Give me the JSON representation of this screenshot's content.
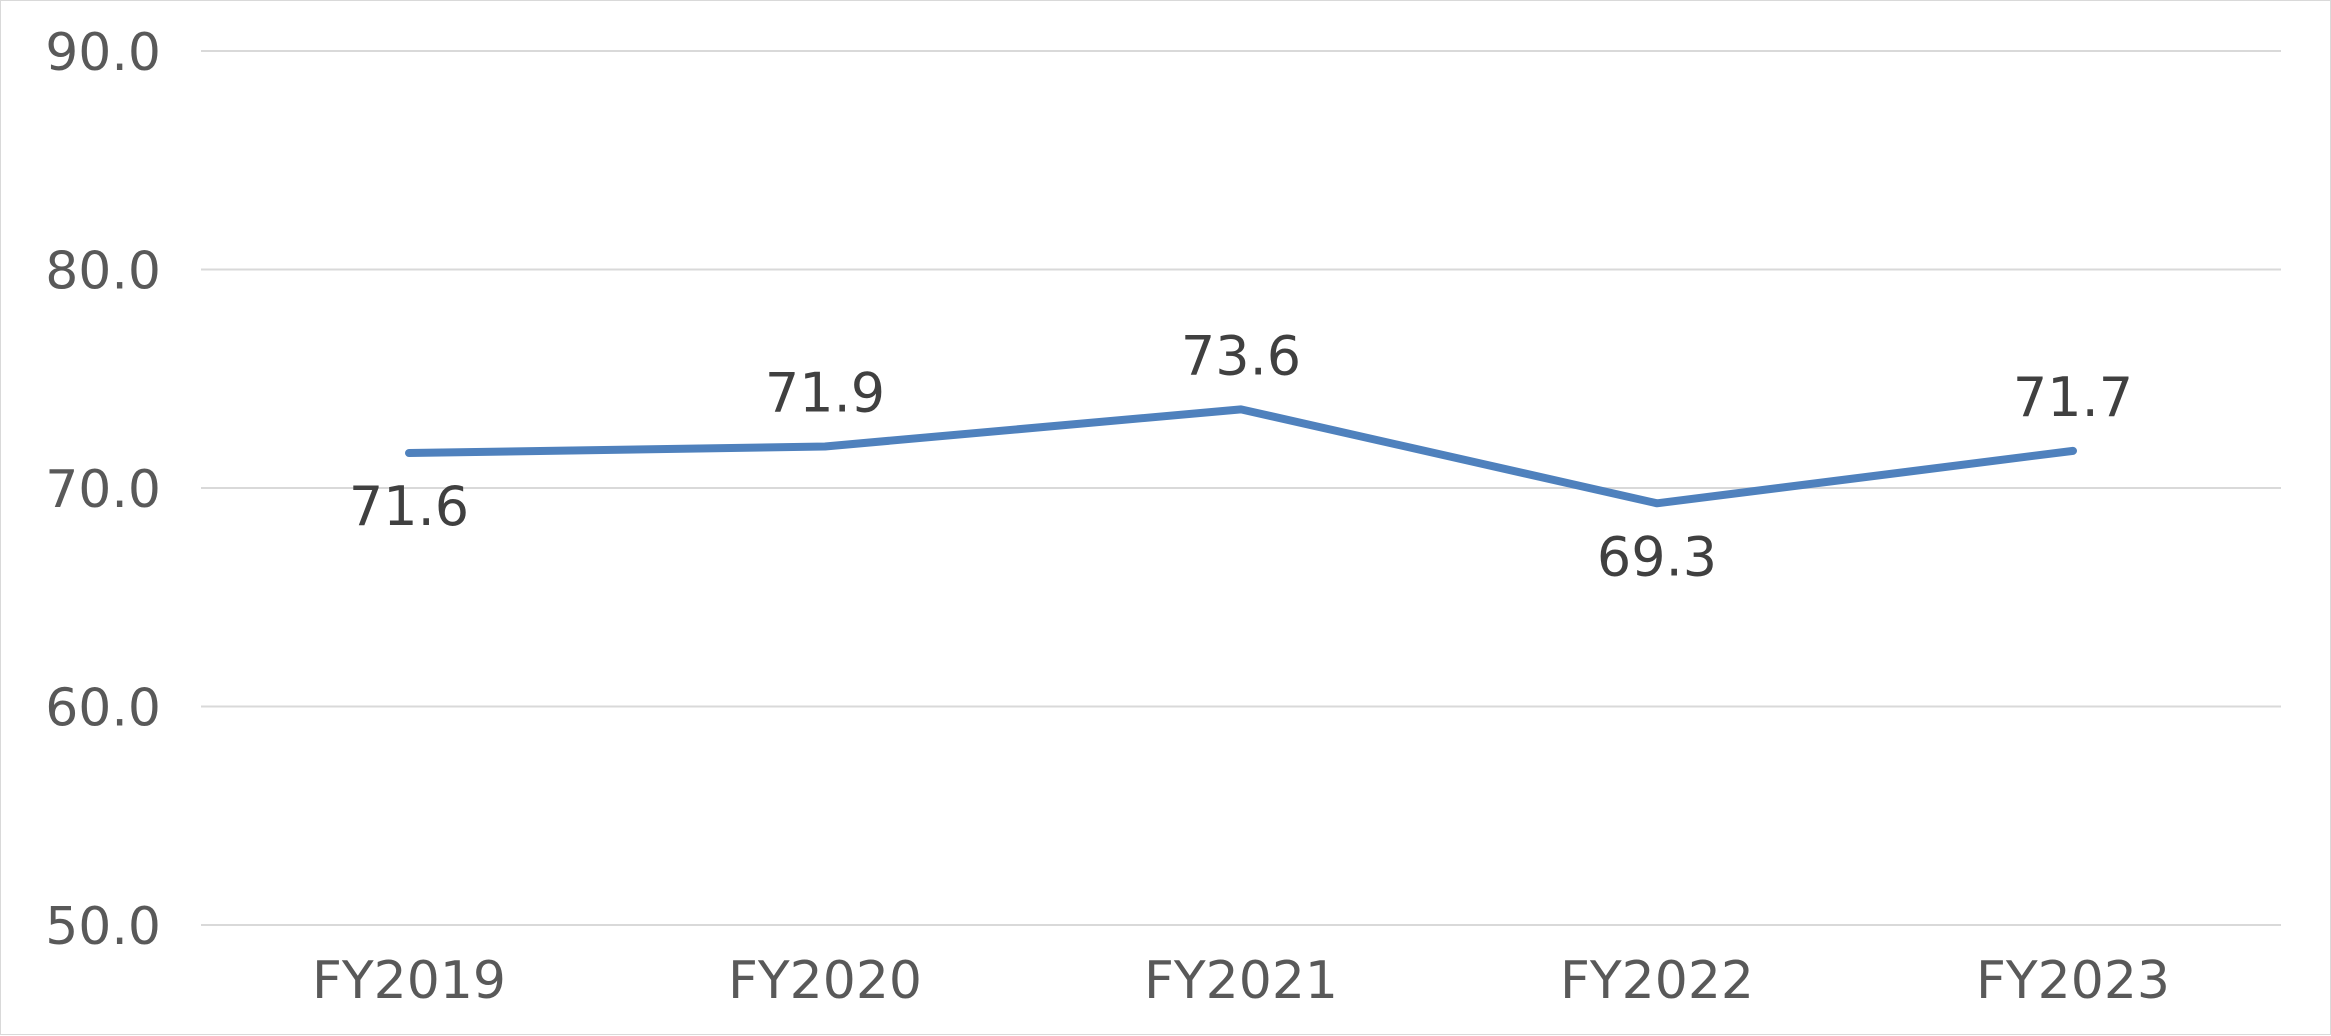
{
  "chart_data": {
    "type": "line",
    "title": "",
    "xlabel": "",
    "ylabel": "",
    "categories": [
      "FY2019",
      "FY2020",
      "FY2021",
      "FY2022",
      "FY2023"
    ],
    "series": [
      {
        "values": [
          71.6,
          71.9,
          73.6,
          69.3,
          71.7
        ],
        "labels": [
          "71.6",
          "71.9",
          "73.6",
          "69.3",
          "71.7"
        ],
        "color": "#4f81bd"
      }
    ],
    "ylim": [
      50,
      90
    ],
    "yticks": [
      {
        "value": 90,
        "label": "90.0"
      },
      {
        "value": 80,
        "label": "80.0"
      },
      {
        "value": 70,
        "label": "70.0"
      },
      {
        "value": 60,
        "label": "60.0"
      },
      {
        "value": 50,
        "label": "50.0"
      }
    ],
    "grid": true,
    "legend": "none"
  }
}
